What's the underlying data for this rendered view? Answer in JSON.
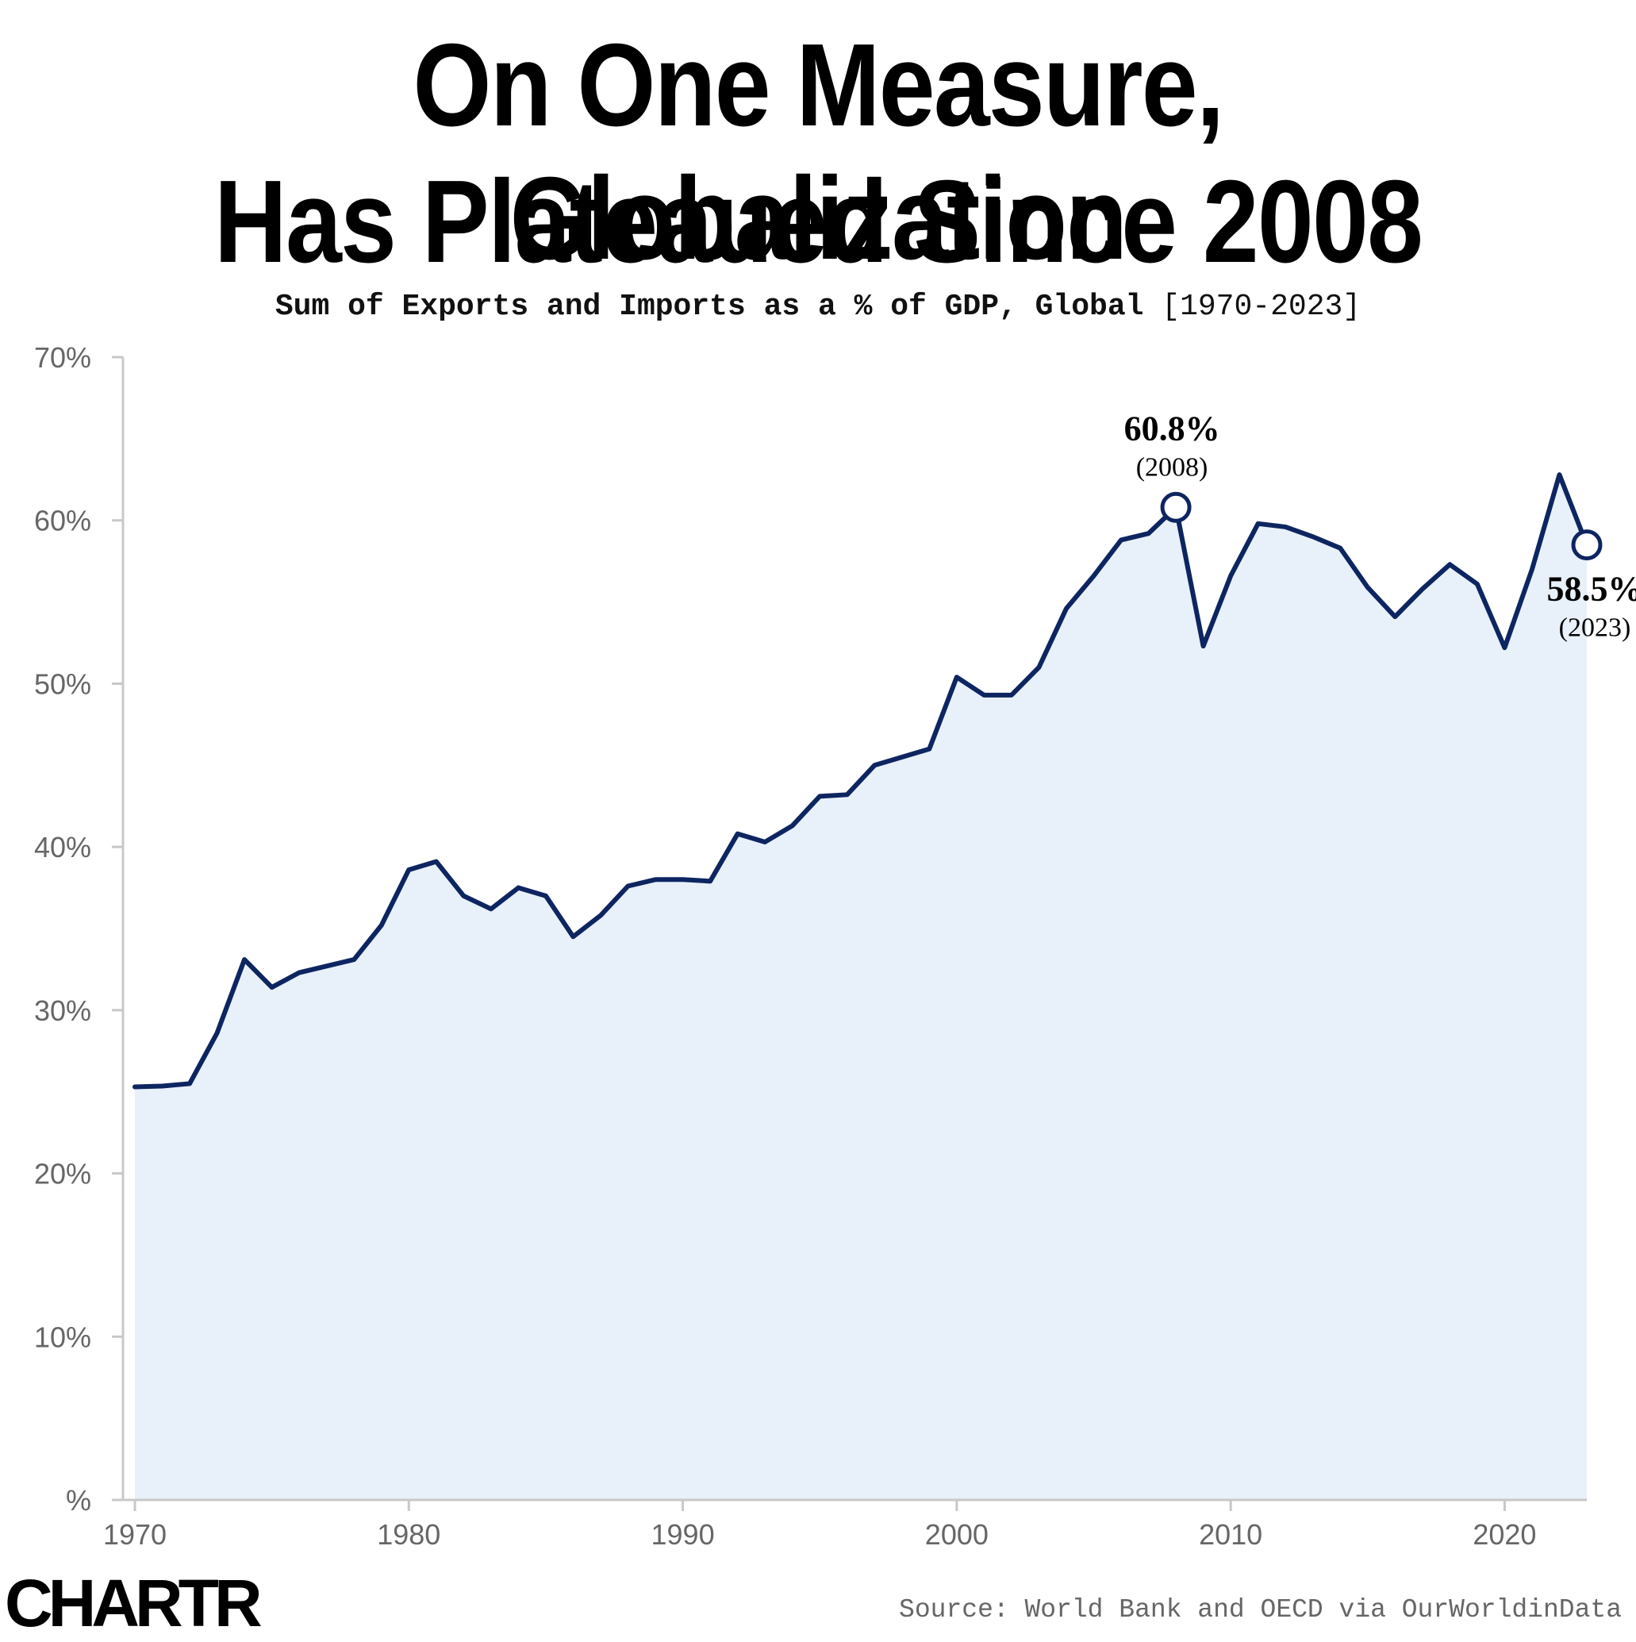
{
  "title_line1": "On One Measure, Globalization",
  "title_line2": "Has Plateaued Since 2008",
  "subtitle_bold": "Sum of Exports and Imports as a % of GDP, Global",
  "subtitle_range": "[1970-2023]",
  "source": "Source: World Bank and OECD via OurWorldinData",
  "logo": "CHARTR",
  "colors": {
    "line": "#0d2561",
    "fill": "#e8f0f9",
    "axis": "#c8c8c8",
    "tick_text": "#666666"
  },
  "annotations": [
    {
      "value_label": "60.8%",
      "year_label": "(2008)",
      "x": 2008,
      "y": 60.8
    },
    {
      "value_label": "58.5%",
      "year_label": "(2023)",
      "x": 2023,
      "y": 58.5
    }
  ],
  "chart_data": {
    "type": "area",
    "title": "On One Measure, Globalization Has Plateaued Since 2008",
    "subtitle": "Sum of Exports and Imports as a % of GDP, Global [1970-2023]",
    "xlabel": "",
    "ylabel": "",
    "xlim": [
      1970,
      2024
    ],
    "ylim": [
      0,
      70
    ],
    "grid": false,
    "x_ticks": [
      1970,
      1980,
      1990,
      2000,
      2010,
      2020
    ],
    "x_tick_labels": [
      "1970",
      "1980",
      "1990",
      "2000",
      "2010",
      "2020"
    ],
    "y_ticks": [
      0,
      10,
      20,
      30,
      40,
      50,
      60,
      70
    ],
    "y_tick_labels": [
      "%",
      "10%",
      "20%",
      "30%",
      "40%",
      "50%",
      "60%",
      "70%"
    ],
    "x": [
      1970,
      1971,
      1972,
      1973,
      1974,
      1975,
      1976,
      1977,
      1978,
      1979,
      1980,
      1981,
      1982,
      1983,
      1984,
      1985,
      1986,
      1987,
      1988,
      1989,
      1990,
      1991,
      1992,
      1993,
      1994,
      1995,
      1996,
      1997,
      1998,
      1999,
      2000,
      2001,
      2002,
      2003,
      2004,
      2005,
      2006,
      2007,
      2008,
      2009,
      2010,
      2011,
      2012,
      2013,
      2014,
      2015,
      2016,
      2017,
      2018,
      2019,
      2020,
      2021,
      2022,
      2023
    ],
    "series": [
      {
        "values": [
          25.3,
          25.35,
          25.5,
          28.6,
          33.1,
          31.4,
          32.3,
          32.7,
          33.1,
          35.2,
          38.6,
          39.1,
          37.0,
          36.2,
          37.5,
          37.0,
          34.5,
          35.8,
          37.6,
          38.0,
          38.0,
          37.9,
          40.8,
          40.3,
          41.3,
          43.1,
          43.2,
          45.0,
          45.5,
          46.0,
          50.4,
          49.3,
          49.3,
          51.0,
          54.6,
          56.6,
          58.8,
          59.2,
          60.8,
          52.3,
          56.6,
          59.8,
          59.6,
          59.0,
          58.3,
          55.9,
          54.1,
          55.8,
          57.3,
          56.1,
          52.2,
          57.0,
          62.8,
          58.5
        ]
      }
    ]
  }
}
